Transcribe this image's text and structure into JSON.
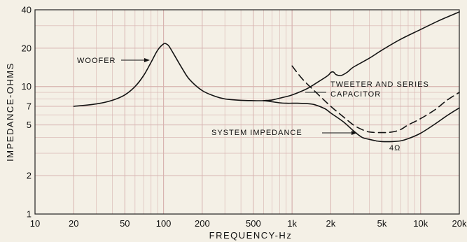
{
  "chart_data": {
    "type": "line",
    "title": "",
    "xlabel": "FREQUENCY-Hz",
    "ylabel": "IMPEDANCE-OHMS",
    "xscale": "log",
    "yscale": "log",
    "xlim": [
      10,
      20000
    ],
    "ylim": [
      1,
      40
    ],
    "grid": true,
    "x_ticks": [
      {
        "value": 10,
        "label": "10"
      },
      {
        "value": 20,
        "label": "20"
      },
      {
        "value": 50,
        "label": "50"
      },
      {
        "value": 100,
        "label": "100"
      },
      {
        "value": 200,
        "label": "200"
      },
      {
        "value": 500,
        "label": "500"
      },
      {
        "value": 1000,
        "label": "1k"
      },
      {
        "value": 2000,
        "label": "2k"
      },
      {
        "value": 5000,
        "label": "5k"
      },
      {
        "value": 10000,
        "label": "10k"
      },
      {
        "value": 20000,
        "label": "20k"
      }
    ],
    "y_ticks": [
      {
        "value": 1,
        "label": "1"
      },
      {
        "value": 2,
        "label": "2"
      },
      {
        "value": 5,
        "label": "5"
      },
      {
        "value": 7,
        "label": "7"
      },
      {
        "value": 10,
        "label": "10"
      },
      {
        "value": 20,
        "label": "20"
      },
      {
        "value": 40,
        "label": "40"
      }
    ],
    "series": [
      {
        "id": "woofer",
        "style": "solid",
        "x": [
          20,
          30,
          40,
          50,
          60,
          70,
          80,
          90,
          100,
          105,
          110,
          120,
          140,
          160,
          200,
          250,
          300,
          400,
          500,
          600,
          700,
          800,
          1000,
          1300,
          1600,
          1900,
          2000,
          2100,
          2200,
          2400,
          2700,
          3000,
          4000,
          5000,
          7000,
          10000,
          14000,
          20000
        ],
        "y": [
          7.0,
          7.3,
          7.8,
          8.6,
          10.0,
          12.2,
          15.5,
          19.3,
          21.6,
          21.6,
          20.8,
          18.0,
          13.8,
          11.3,
          9.3,
          8.4,
          8.0,
          7.8,
          7.75,
          7.75,
          7.85,
          8.1,
          8.6,
          9.6,
          10.9,
          12.2,
          12.9,
          13.0,
          12.4,
          12.2,
          13.0,
          14.2,
          16.7,
          19.3,
          23.5,
          28.0,
          33.0,
          38.5
        ]
      },
      {
        "id": "system",
        "style": "solid",
        "x": [
          600,
          700,
          800,
          900,
          1000,
          1100,
          1300,
          1500,
          1800,
          2000,
          2500,
          3000,
          3500,
          4000,
          4500,
          5000,
          6000,
          7000,
          8000,
          10000,
          13000,
          16000,
          20000
        ],
        "y": [
          7.75,
          7.6,
          7.45,
          7.4,
          7.4,
          7.4,
          7.35,
          7.2,
          6.7,
          6.2,
          5.3,
          4.5,
          4.0,
          3.85,
          3.75,
          3.7,
          3.7,
          3.75,
          3.9,
          4.3,
          5.1,
          5.9,
          6.8
        ]
      },
      {
        "id": "tweeter",
        "style": "dashed",
        "x": [
          1000,
          1200,
          1500,
          2000,
          2500,
          3000,
          3500,
          4000,
          5000,
          6000,
          7000,
          8000,
          10000,
          13000,
          16000,
          20000
        ],
        "y": [
          14.5,
          11.5,
          9.2,
          7.0,
          5.8,
          5.0,
          4.6,
          4.4,
          4.35,
          4.4,
          4.6,
          5.0,
          5.6,
          6.6,
          7.8,
          9.0
        ]
      }
    ],
    "annotations": [
      {
        "id": "woofer_label",
        "text": "WOOFER"
      },
      {
        "id": "tweeter_label_1",
        "text": "TWEETER AND SERIES"
      },
      {
        "id": "tweeter_label_2",
        "text": "CAPACITOR"
      },
      {
        "id": "system_label",
        "text": "SYSTEM IMPEDANCE"
      },
      {
        "id": "four_ohm_label",
        "text": "4Ω"
      }
    ],
    "colors": {
      "background": "#f4f0e6",
      "grid": "#d7b3b0",
      "line": "#141414"
    }
  }
}
